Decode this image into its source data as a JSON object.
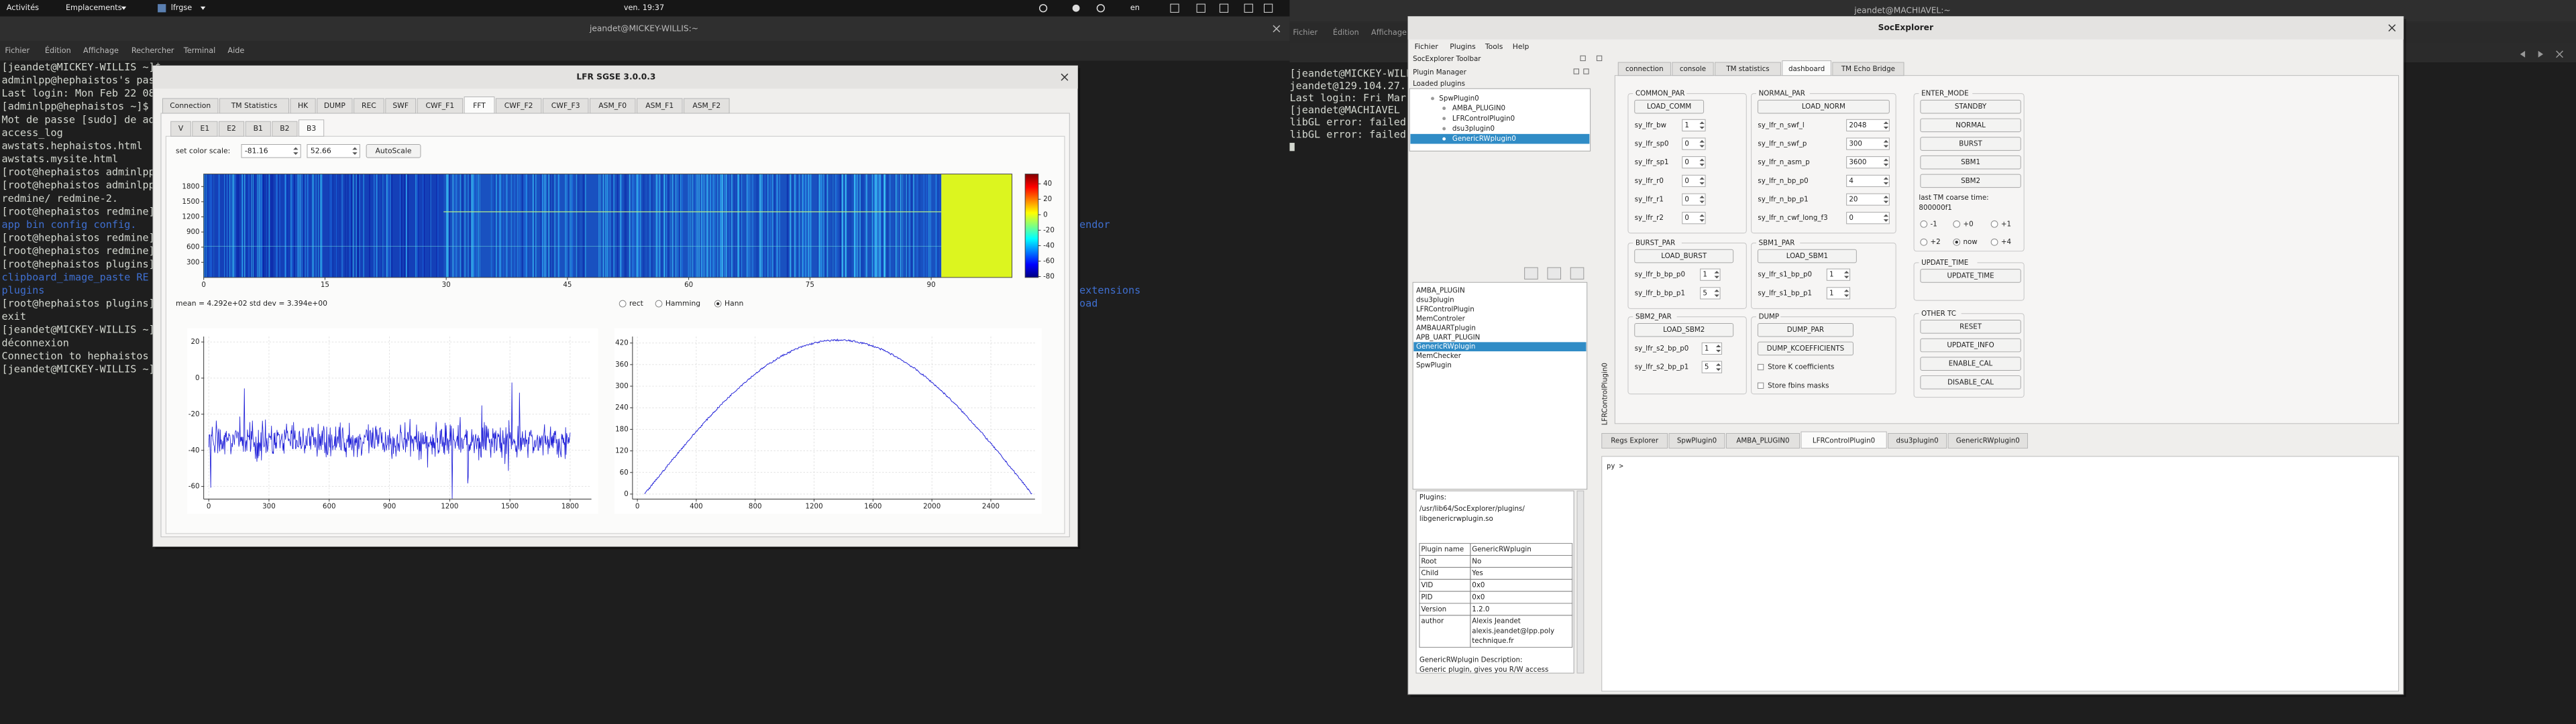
{
  "top_bar": {
    "activities": "Activités",
    "places": "Emplacements",
    "app": "lfrgse",
    "clock": "ven. 19:37",
    "language": "en"
  },
  "terminal_left": {
    "title": "jeandet@MICKEY-WILLIS:~",
    "menu": [
      "Fichier",
      "Édition",
      "Affichage",
      "Rechercher",
      "Terminal",
      "Aide"
    ],
    "lines": [
      "[jeandet@MICKEY-WILLIS ~]$",
      "adminlpp@hephaistos's pass",
      "Last login: Mon Feb 22 08",
      "[adminlpp@hephaistos ~]$ s",
      "Mot de passe [sudo] de ad",
      "access_log",
      "awstats.hephaistos.html",
      "awstats.mysite.html",
      "[root@hephaistos adminlpp",
      "[root@hephaistos adminlpp",
      "redmine/      redmine-2.",
      "[root@hephaistos redmine]",
      {
        "text": "app  bin  config  config.",
        "color": "#3f6fd0"
      },
      "[root@hephaistos redmine]",
      "[root@hephaistos redmine]",
      "[root@hephaistos plugins]",
      {
        "text": "clipboard_image_paste  RE",
        "color": "#3f6fd0"
      },
      {
        "text": "plugins",
        "color": "#3f6fd0"
      },
      "[root@hephaistos plugins]",
      "exit",
      "[jeandet@MICKEY-WILLIS ~]$",
      "déconnexion",
      "Connection to hephaistos c",
      "[jeandet@MICKEY-WILLIS ~]$"
    ],
    "fragments": [
      "endor",
      "extensions",
      "oad"
    ],
    "fragment_color": "#3f6fd0"
  },
  "terminal_right": {
    "title": "jeandet@MACHIAVEL:~",
    "menu": [
      "Fichier",
      "Édition",
      "Affichage"
    ],
    "lines": [
      "[jeandet@MICKEY-WILLIS ~]$",
      "jeandet@129.104.27.",
      "Last login: Fri Mar",
      "[jeandet@MACHIAVEL",
      "libGL error: failed",
      "libGL error: failed"
    ]
  },
  "lfr_sgse": {
    "title": "LFR SGSE 3.0.0.3",
    "tabs": [
      "Connection",
      "TM Statistics",
      "HK",
      "DUMP",
      "REC",
      "SWF",
      "CWF_F1",
      "FFT",
      "CWF_F2",
      "CWF_F3",
      "ASM_F0",
      "ASM_F1",
      "ASM_F2"
    ],
    "active_tab": "FFT",
    "subtabs": [
      "V",
      "E1",
      "E2",
      "B1",
      "B2",
      "B3"
    ],
    "active_subtab": "B3",
    "color_scale": {
      "label": "set color scale:",
      "min": -81.16,
      "max": 52.66,
      "button": "AutoScale"
    },
    "colorbar_ticks": [
      40,
      20,
      0,
      -20,
      -40,
      -60,
      -80
    ],
    "spectrogram": {
      "xlim": [
        0,
        100
      ],
      "ylim": [
        0,
        2048
      ],
      "xticks": [
        0,
        15,
        30,
        45,
        60,
        75,
        90
      ],
      "yticks": [
        1800,
        1500,
        1200,
        900,
        600,
        300
      ]
    },
    "stats": "mean = 4.292e+02 std dev = 3.394e+00",
    "windows": [
      "rect",
      "Hamming",
      "Hann"
    ],
    "selected_window": "Hann",
    "time_plot": {
      "xlim": [
        -25,
        1906
      ],
      "ylim": [
        -67,
        23
      ],
      "xticks": [
        0,
        300,
        600,
        900,
        1200,
        1500,
        1800
      ],
      "yticks": [
        20,
        0,
        -20,
        -40,
        -60
      ],
      "grid": true
    },
    "spectrum_plot": {
      "xlim": [
        -33,
        2700
      ],
      "ylim": [
        -14,
        438
      ],
      "xticks": [
        0,
        400,
        800,
        1200,
        1600,
        2000,
        2400
      ],
      "yticks": [
        420,
        360,
        300,
        240,
        180,
        120,
        60,
        0
      ],
      "grid": true
    }
  },
  "socexplorer": {
    "title": "SocExplorer",
    "menu": [
      "Fichier",
      "Plugins",
      "Tools",
      "Help"
    ],
    "toolbar": "SocExplorer Toolbar",
    "plugin_manager": "Plugin Manager",
    "loaded_plugins": "Loaded plugins",
    "tree": [
      "SpwPlugin0",
      "AMBA_PLUGIN0",
      "LFRControlPlugin0",
      "dsu3plugin0",
      "GenericRWplugin0"
    ],
    "tree_selected": "GenericRWplugin0",
    "available": [
      "AMBA_PLUGIN",
      "dsu3plugin",
      "LFRControlPlugin",
      "MemControler",
      "AMBAUARTplugin",
      "APB_UART_PLUGIN",
      "GenericRWplugin",
      "MemChecker",
      "SpwPlugin"
    ],
    "available_selected": "GenericRWplugin",
    "info": {
      "heading": "Plugins:",
      "path": [
        "/usr/lib64/SocExplorer/plugins/",
        "libgenericrwplugin.so"
      ],
      "table": [
        [
          "Plugin name",
          "GenericRWplugin"
        ],
        [
          "Root",
          "No"
        ],
        [
          "Child",
          "Yes"
        ],
        [
          "VID",
          "0x0"
        ],
        [
          "PID",
          "0x0"
        ],
        [
          "Version",
          "1.2.0"
        ],
        [
          "author",
          [
            "Alexis Jeandet",
            "alexis.jeandet@lpp.poly",
            "technique.fr"
          ]
        ]
      ],
      "description": [
        "GenericRWplugin Description:",
        "Generic plugin, gives you R/W access"
      ]
    },
    "dock_title": "LFRControlPlugin0",
    "tabs": [
      "connection",
      "console",
      "TM statistics",
      "dashboard",
      "TM Echo Bridge"
    ],
    "active_tab": "dashboard",
    "groups": [
      {
        "title": "COMMON_PAR",
        "buttons": [
          "LOAD_COMM"
        ],
        "fields": [
          {
            "label": "sy_lfr_bw",
            "value": 1
          },
          {
            "label": "sy_lfr_sp0",
            "value": 0
          },
          {
            "label": "sy_lfr_sp1",
            "value": 0
          },
          {
            "label": "sy_lfr_r0",
            "value": 0
          },
          {
            "label": "sy_lfr_r1",
            "value": 0
          },
          {
            "label": "sy_lfr_r2",
            "value": 0
          }
        ]
      },
      {
        "title": "NORMAL_PAR",
        "buttons": [
          "LOAD_NORM"
        ],
        "fields": [
          {
            "label": "sy_lfr_n_swf_l",
            "value": 2048
          },
          {
            "label": "sy_lfr_n_swf_p",
            "value": 300
          },
          {
            "label": "sy_lfr_n_asm_p",
            "value": 3600
          },
          {
            "label": "sy_lfr_n_bp_p0",
            "value": 4
          },
          {
            "label": "sy_lfr_n_bp_p1",
            "value": 20
          },
          {
            "label": "sy_lfr_n_cwf_long_f3",
            "value": 0
          }
        ]
      },
      {
        "title": "ENTER_MODE",
        "buttons": [
          "STANDBY",
          "NORMAL",
          "BURST",
          "SBM1",
          "SBM2"
        ],
        "note": [
          "last TM coarse time:",
          "800000f1"
        ],
        "radios": [
          "-1",
          "+0",
          "+1",
          "+2",
          "now",
          "+4"
        ],
        "radio_selected": "now"
      },
      {
        "title": "BURST_PAR",
        "buttons": [
          "LOAD_BURST"
        ],
        "fields": [
          {
            "label": "sy_lfr_b_bp_p0",
            "value": 1
          },
          {
            "label": "sy_lfr_b_bp_p1",
            "value": 5
          }
        ]
      },
      {
        "title": "SBM1_PAR",
        "buttons": [
          "LOAD_SBM1"
        ],
        "fields": [
          {
            "label": "sy_lfr_s1_bp_p0",
            "value": 1
          },
          {
            "label": "sy_lfr_s1_bp_p1",
            "value": 1
          }
        ]
      },
      {
        "title": "UPDATE_TIME",
        "buttons": [
          "UPDATE_TIME"
        ]
      },
      {
        "title": "SBM2_PAR",
        "buttons": [
          "LOAD_SBM2"
        ],
        "fields": [
          {
            "label": "sy_lfr_s2_bp_p0",
            "value": 1
          },
          {
            "label": "sy_lfr_s2_bp_p1",
            "value": 5
          }
        ]
      },
      {
        "title": "DUMP",
        "buttons": [
          "DUMP_PAR",
          "DUMP_KCOEFFICIENTS"
        ],
        "checks": [
          "Store K coefficients",
          "Store fbins masks"
        ]
      },
      {
        "title": "OTHER TC",
        "buttons": [
          "RESET",
          "UPDATE_INFO",
          "ENABLE_CAL",
          "DISABLE_CAL"
        ]
      }
    ],
    "bottom_tabs": [
      "Regs Explorer",
      "SpwPlugin0",
      "AMBA_PLUGIN0",
      "LFRControlPlugin0",
      "dsu3plugin0",
      "GenericRWplugin0"
    ],
    "bottom_active": "LFRControlPlugin0",
    "console_prompt": "py >"
  }
}
